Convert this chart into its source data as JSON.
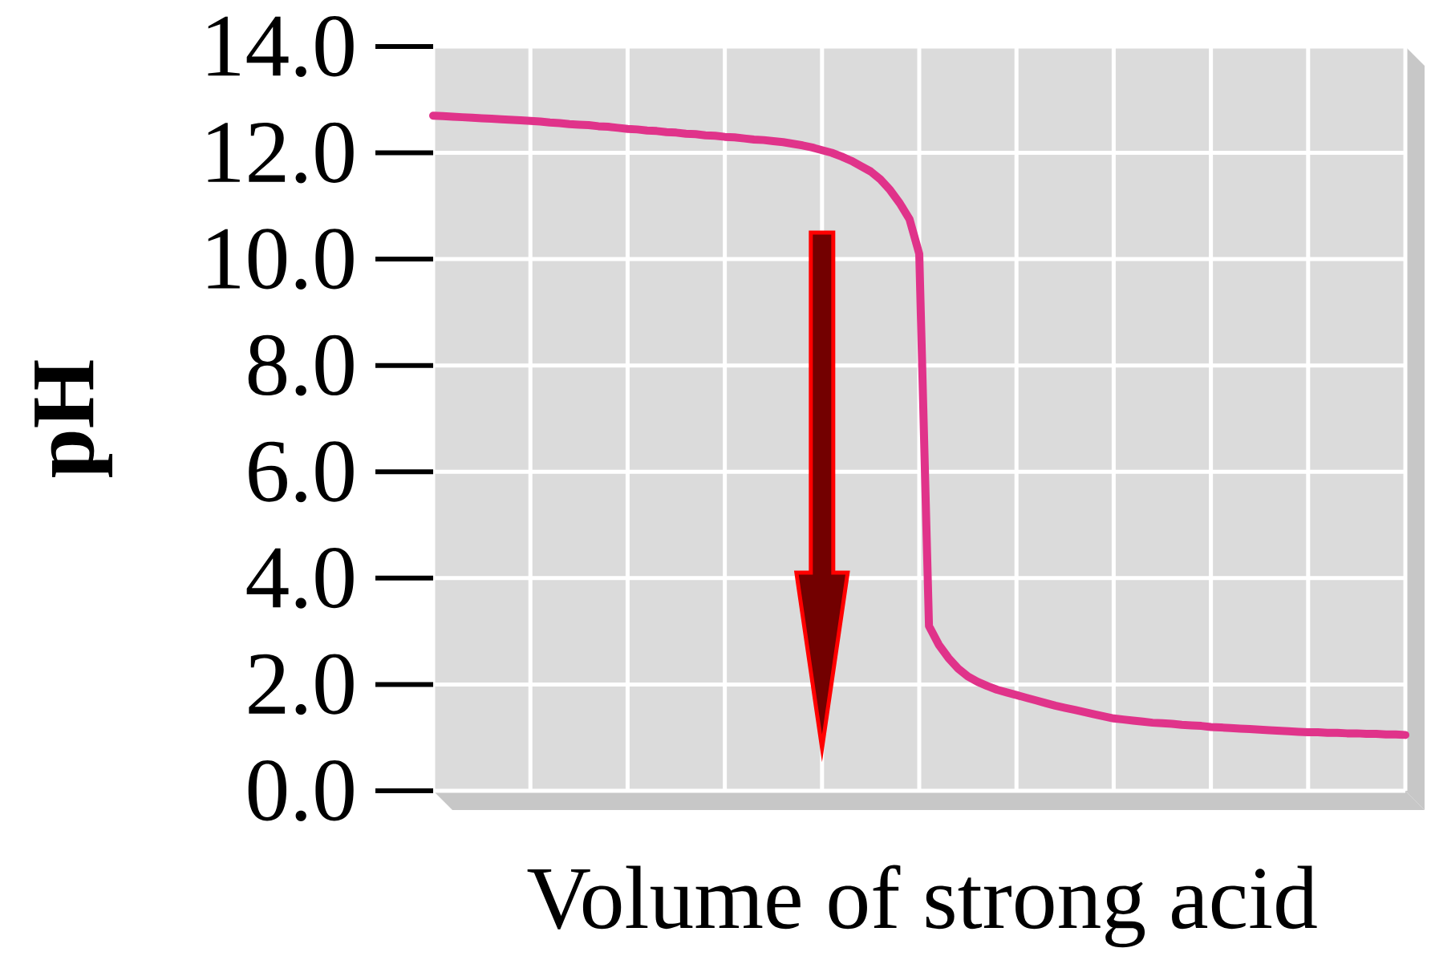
{
  "chart_data": {
    "type": "line",
    "xlabel": "Volume of strong acid",
    "ylabel": "pH",
    "categories": [
      null,
      null,
      null,
      null,
      null,
      null,
      null,
      null,
      null,
      null,
      null,
      null,
      null,
      null,
      null,
      null,
      null,
      null,
      null,
      null,
      null,
      null,
      null,
      null,
      null,
      null,
      null,
      null,
      null,
      null,
      null,
      null,
      null,
      null,
      null,
      null,
      null,
      null,
      null,
      null,
      null,
      null,
      null,
      null,
      null,
      null,
      null,
      null,
      null,
      null,
      null,
      null,
      null,
      null,
      null,
      null,
      null,
      null,
      null,
      null,
      null,
      null,
      null,
      null,
      null,
      null,
      null,
      null,
      null,
      null,
      null,
      null,
      null,
      null,
      null,
      null,
      null,
      null,
      null,
      null,
      null,
      null,
      null,
      null,
      null,
      null,
      null,
      null,
      null,
      null,
      null,
      null,
      null,
      null,
      null,
      null,
      null,
      null,
      null,
      null,
      null
    ],
    "series": [
      {
        "color": "#e0338a",
        "values": [
          12.7,
          12.69,
          12.68,
          12.67,
          12.66,
          12.65,
          12.64,
          12.63,
          12.62,
          12.61,
          12.6,
          12.59,
          12.57,
          12.56,
          12.54,
          12.53,
          12.52,
          12.5,
          12.49,
          12.47,
          12.45,
          12.44,
          12.42,
          12.41,
          12.39,
          12.38,
          12.36,
          12.35,
          12.33,
          12.32,
          12.3,
          12.29,
          12.27,
          12.25,
          12.24,
          12.22,
          12.2,
          12.17,
          12.14,
          12.1,
          12.05,
          12.0,
          11.93,
          11.85,
          11.75,
          11.65,
          11.5,
          11.3,
          11.05,
          10.75,
          10.1,
          3.1,
          2.75,
          2.5,
          2.3,
          2.15,
          2.05,
          1.97,
          1.9,
          1.85,
          1.8,
          1.75,
          1.7,
          1.65,
          1.6,
          1.56,
          1.52,
          1.48,
          1.44,
          1.4,
          1.36,
          1.34,
          1.32,
          1.3,
          1.28,
          1.27,
          1.26,
          1.24,
          1.23,
          1.22,
          1.2,
          1.19,
          1.18,
          1.17,
          1.16,
          1.15,
          1.14,
          1.13,
          1.12,
          1.11,
          1.1,
          1.1,
          1.09,
          1.09,
          1.08,
          1.08,
          1.07,
          1.07,
          1.06,
          1.06,
          1.05
        ]
      }
    ],
    "ylim": [
      0,
      14
    ],
    "yticks": [
      {
        "value": 0,
        "label": "0.0"
      },
      {
        "value": 2,
        "label": "2.0"
      },
      {
        "value": 4,
        "label": "4.0"
      },
      {
        "value": 6,
        "label": "6.0"
      },
      {
        "value": 8,
        "label": "8.0"
      },
      {
        "value": 10,
        "label": "10.0"
      },
      {
        "value": 12,
        "label": "12.0"
      },
      {
        "value": 14,
        "label": "14.0"
      }
    ],
    "grid": true
  }
}
